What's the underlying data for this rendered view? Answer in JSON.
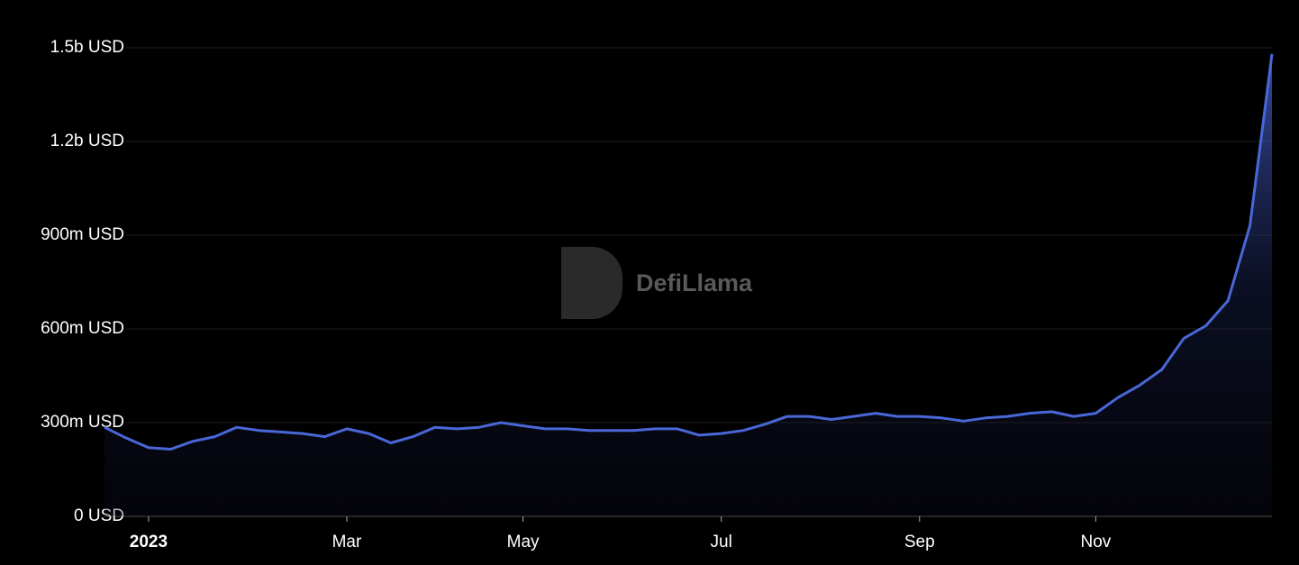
{
  "chart_data": {
    "type": "area",
    "watermark": "DefiLlama",
    "color": "#4a67d8",
    "grid": true,
    "categories": [
      null,
      null,
      "2023",
      null,
      null,
      null,
      null,
      null,
      null,
      null,
      null,
      "Mar",
      null,
      null,
      null,
      null,
      null,
      null,
      null,
      "May",
      null,
      null,
      null,
      null,
      null,
      null,
      null,
      null,
      "Jul",
      null,
      null,
      null,
      null,
      null,
      null,
      null,
      null,
      "Sep",
      null,
      null,
      null,
      null,
      null,
      null,
      null,
      "Nov",
      null,
      null,
      null,
      null,
      null,
      null,
      null,
      null
    ],
    "values": [
      285000000,
      250000000,
      220000000,
      215000000,
      240000000,
      255000000,
      285000000,
      275000000,
      270000000,
      265000000,
      255000000,
      280000000,
      265000000,
      235000000,
      255000000,
      285000000,
      280000000,
      285000000,
      300000000,
      290000000,
      280000000,
      280000000,
      275000000,
      275000000,
      275000000,
      280000000,
      280000000,
      260000000,
      265000000,
      275000000,
      295000000,
      320000000,
      320000000,
      310000000,
      320000000,
      330000000,
      320000000,
      320000000,
      315000000,
      305000000,
      315000000,
      320000000,
      330000000,
      335000000,
      320000000,
      330000000,
      380000000,
      420000000,
      470000000,
      570000000,
      610000000,
      690000000,
      930000000,
      1480000000
    ],
    "ylim": [
      0,
      1500000000
    ],
    "yticks": [
      {
        "value": 0,
        "label": "0 USD"
      },
      {
        "value": 300000000,
        "label": "300m USD"
      },
      {
        "value": 600000000,
        "label": "600m USD"
      },
      {
        "value": 900000000,
        "label": "900m USD"
      },
      {
        "value": 1200000000,
        "label": "1.2b USD"
      },
      {
        "value": 1500000000,
        "label": "1.5b USD"
      }
    ]
  }
}
